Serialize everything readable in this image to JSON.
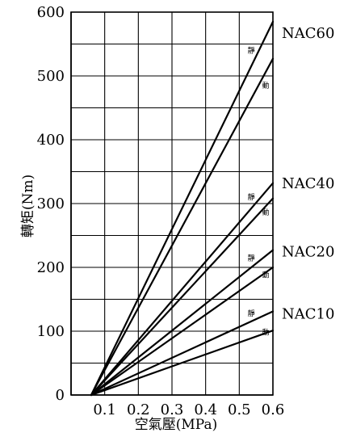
{
  "chart_data": {
    "type": "line",
    "xlabel": "空氣壓(MPa)",
    "ylabel": "轉矩(Nm)",
    "xlim": [
      0,
      0.6
    ],
    "ylim": [
      0,
      600
    ],
    "x_ticks": [
      "0.1",
      "0.2",
      "0.3",
      "0.4",
      "0.5",
      "0.6"
    ],
    "y_ticks": [
      "0",
      "100",
      "200",
      "300",
      "400",
      "500",
      "600"
    ],
    "grid": true,
    "series": [
      {
        "name": "NAC60",
        "static_label": "靜",
        "dynamic_label": "動",
        "static": {
          "x": [
            0.06,
            0.6
          ],
          "y": [
            0,
            585
          ]
        },
        "dynamic": {
          "x": [
            0.06,
            0.6
          ],
          "y": [
            0,
            527
          ]
        }
      },
      {
        "name": "NAC40",
        "static_label": "靜",
        "dynamic_label": "動",
        "static": {
          "x": [
            0.06,
            0.6
          ],
          "y": [
            0,
            332
          ]
        },
        "dynamic": {
          "x": [
            0.06,
            0.6
          ],
          "y": [
            0,
            308
          ]
        }
      },
      {
        "name": "NAC20",
        "static_label": "靜",
        "dynamic_label": "動",
        "static": {
          "x": [
            0.06,
            0.6
          ],
          "y": [
            0,
            227
          ]
        },
        "dynamic": {
          "x": [
            0.06,
            0.6
          ],
          "y": [
            0,
            200
          ]
        }
      },
      {
        "name": "NAC10",
        "static_label": "靜",
        "dynamic_label": "動",
        "static": {
          "x": [
            0.06,
            0.6
          ],
          "y": [
            0,
            131
          ]
        },
        "dynamic": {
          "x": [
            0.06,
            0.6
          ],
          "y": [
            0,
            101
          ]
        }
      }
    ]
  }
}
